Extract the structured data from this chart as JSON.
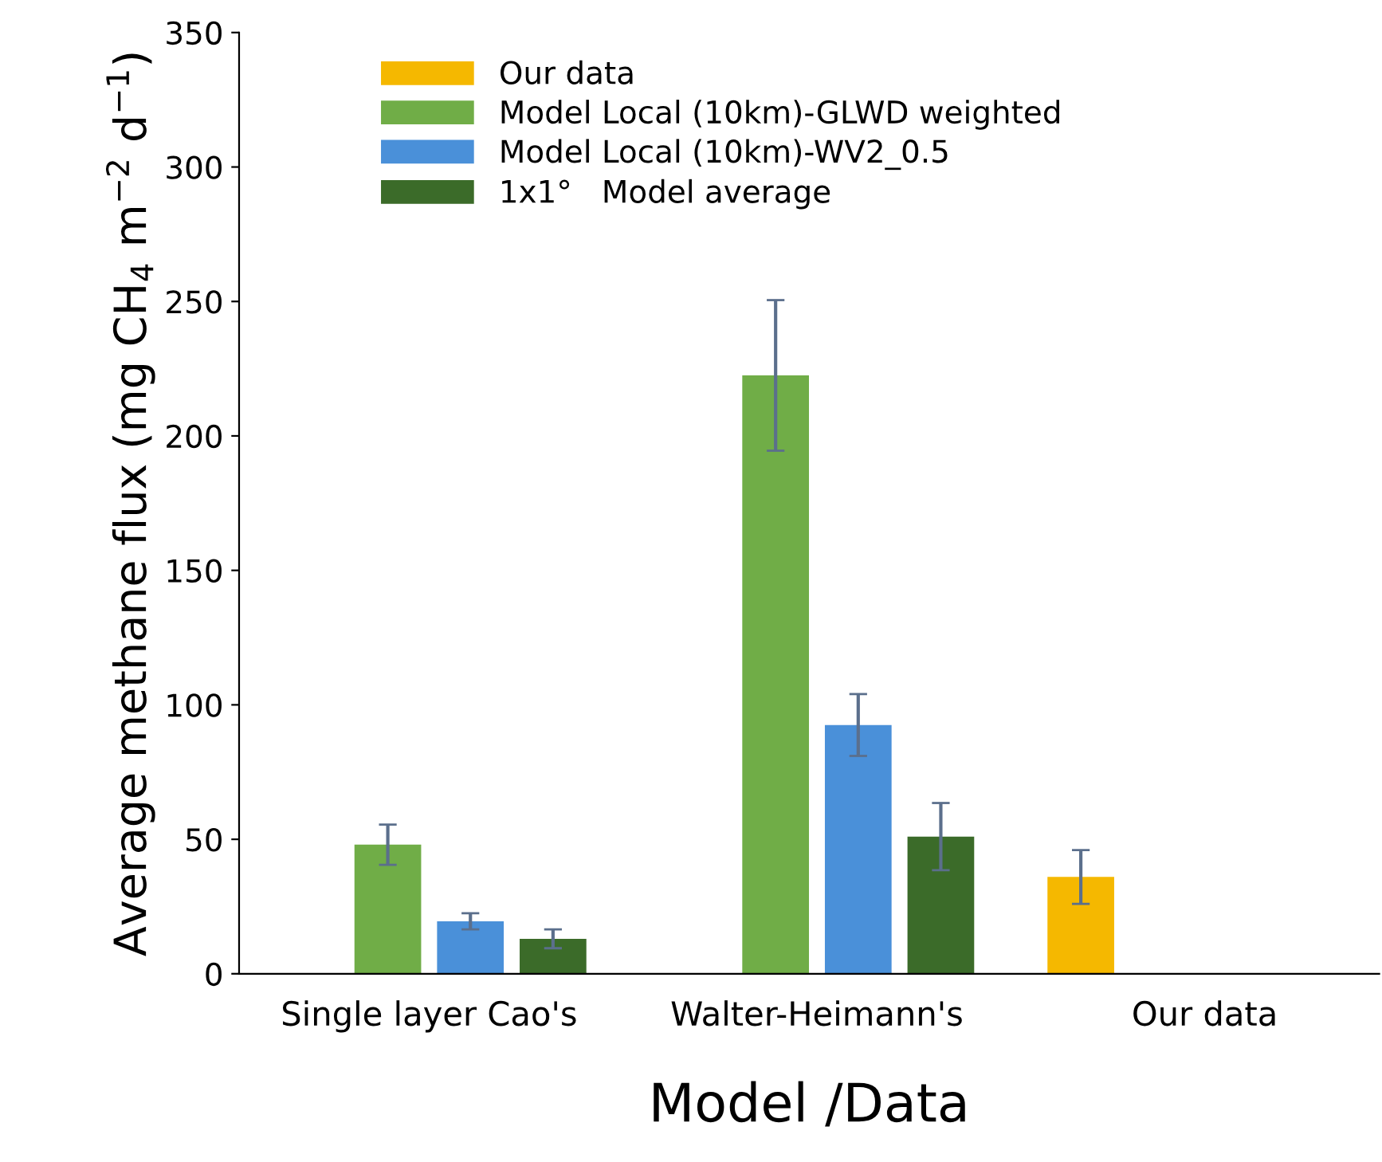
{
  "chart_data": {
    "type": "bar",
    "xlabel": "Model /Data",
    "ylabel": "Average methane flux (mg CH$_{4}$ m$^{−2}$ d$^{−1}$)",
    "categories": [
      "Single layer Cao's",
      "Walter-Heimann's",
      "Our data"
    ],
    "series": [
      {
        "name": "Our data",
        "color": "#f5b800",
        "values": [
          null,
          null,
          36
        ],
        "errors": [
          null,
          null,
          10
        ]
      },
      {
        "name": "Model Local (10km)-GLWD weighted",
        "color": "#70ad47",
        "values": [
          48,
          222.5,
          null
        ],
        "errors": [
          7.5,
          28,
          null
        ]
      },
      {
        "name": "Model Local (10km)-WV2_0.5",
        "color": "#4a90d9",
        "values": [
          19.5,
          92.5,
          null
        ],
        "errors": [
          3,
          11.5,
          null
        ]
      },
      {
        "name": "1x1°   Model average",
        "color": "#3b6b29",
        "values": [
          13,
          51,
          null
        ],
        "errors": [
          3.5,
          12.5,
          null
        ]
      }
    ],
    "ylim": [
      0,
      350
    ],
    "yticks": [
      0,
      50,
      100,
      150,
      200,
      250,
      300,
      350
    ],
    "grid": false,
    "legend": "top left"
  }
}
